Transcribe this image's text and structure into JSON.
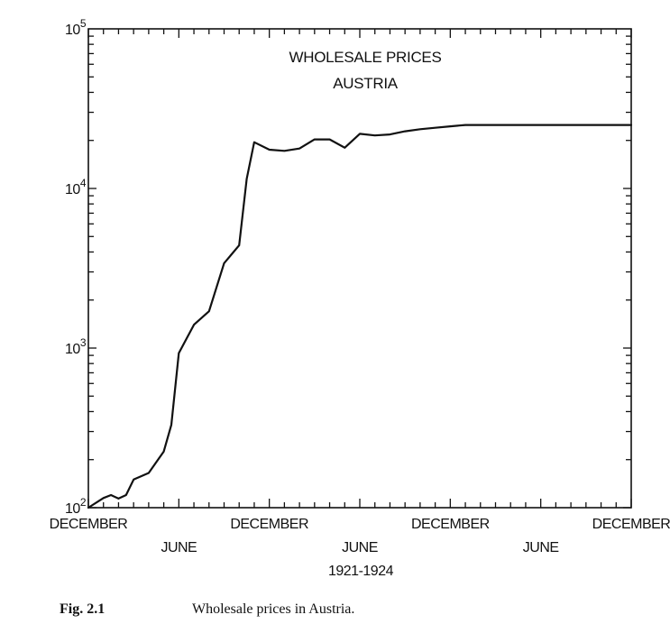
{
  "chart_data": {
    "type": "line",
    "title": "WHOLESALE PRICES",
    "subtitle": "AUSTRIA",
    "xlabel": "1921-1924",
    "ylabel": "",
    "yscale": "log",
    "ylim": [
      100,
      100000
    ],
    "xlim": [
      0,
      36
    ],
    "y_ticks": [
      {
        "value": 100,
        "base": "10",
        "exp": "2"
      },
      {
        "value": 1000,
        "base": "10",
        "exp": "3"
      },
      {
        "value": 10000,
        "base": "10",
        "exp": "4"
      },
      {
        "value": 100000,
        "base": "10",
        "exp": "5"
      }
    ],
    "x_ticks_top_row": [
      {
        "value": 0,
        "label": "DECEMBER"
      },
      {
        "value": 12,
        "label": "DECEMBER"
      },
      {
        "value": 24,
        "label": "DECEMBER"
      },
      {
        "value": 36,
        "label": "DECEMBER"
      }
    ],
    "x_ticks_bottom_row": [
      {
        "value": 6,
        "label": "JUNE"
      },
      {
        "value": 18,
        "label": "JUNE"
      },
      {
        "value": 30,
        "label": "JUNE"
      }
    ],
    "series": [
      {
        "name": "Wholesale prices, Austria",
        "x": [
          0,
          1,
          1.5,
          2,
          2.5,
          3,
          4,
          5,
          5.5,
          6,
          7,
          8,
          9,
          10,
          10.5,
          11,
          12,
          13,
          14,
          15,
          16,
          17,
          18,
          19,
          20,
          21,
          22,
          23,
          24,
          25,
          26,
          27,
          28,
          29,
          30,
          31,
          32,
          33,
          34,
          35,
          36
        ],
        "values": [
          100,
          115,
          120,
          114,
          120,
          150,
          165,
          225,
          330,
          930,
          1400,
          1700,
          3400,
          4400,
          11500,
          19500,
          17500,
          17200,
          17800,
          20300,
          20300,
          18000,
          22000,
          21500,
          21800,
          22800,
          23500,
          24000,
          24500,
          25000,
          25000,
          25000,
          25000,
          25000,
          25000,
          25000,
          25000,
          25000,
          25000,
          25000,
          25000
        ]
      }
    ]
  },
  "caption": {
    "label": "Fig. 2.1",
    "text": "Wholesale prices in Austria."
  }
}
